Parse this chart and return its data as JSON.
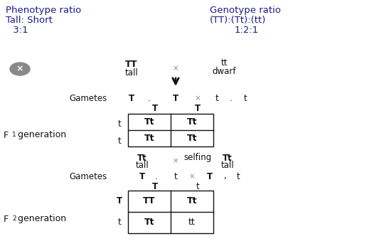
{
  "bg_color": "#ffffff",
  "blue": "#1a1a8c",
  "black": "#111111",
  "darkgray": "#555555",
  "lightgray": "#888888",
  "phenotype_ratio_label": "Phenotype ratio",
  "phenotype_ratio_line2": "Tall: Short",
  "phenotype_ratio_value": " 3:1",
  "genotype_ratio_label": "Genotype ratio",
  "genotype_ratio_line2": "(TT):(Tt):(tt)",
  "genotype_ratio_value": "1:2:1",
  "figsize": [
    5.33,
    3.53
  ],
  "dpi": 100
}
